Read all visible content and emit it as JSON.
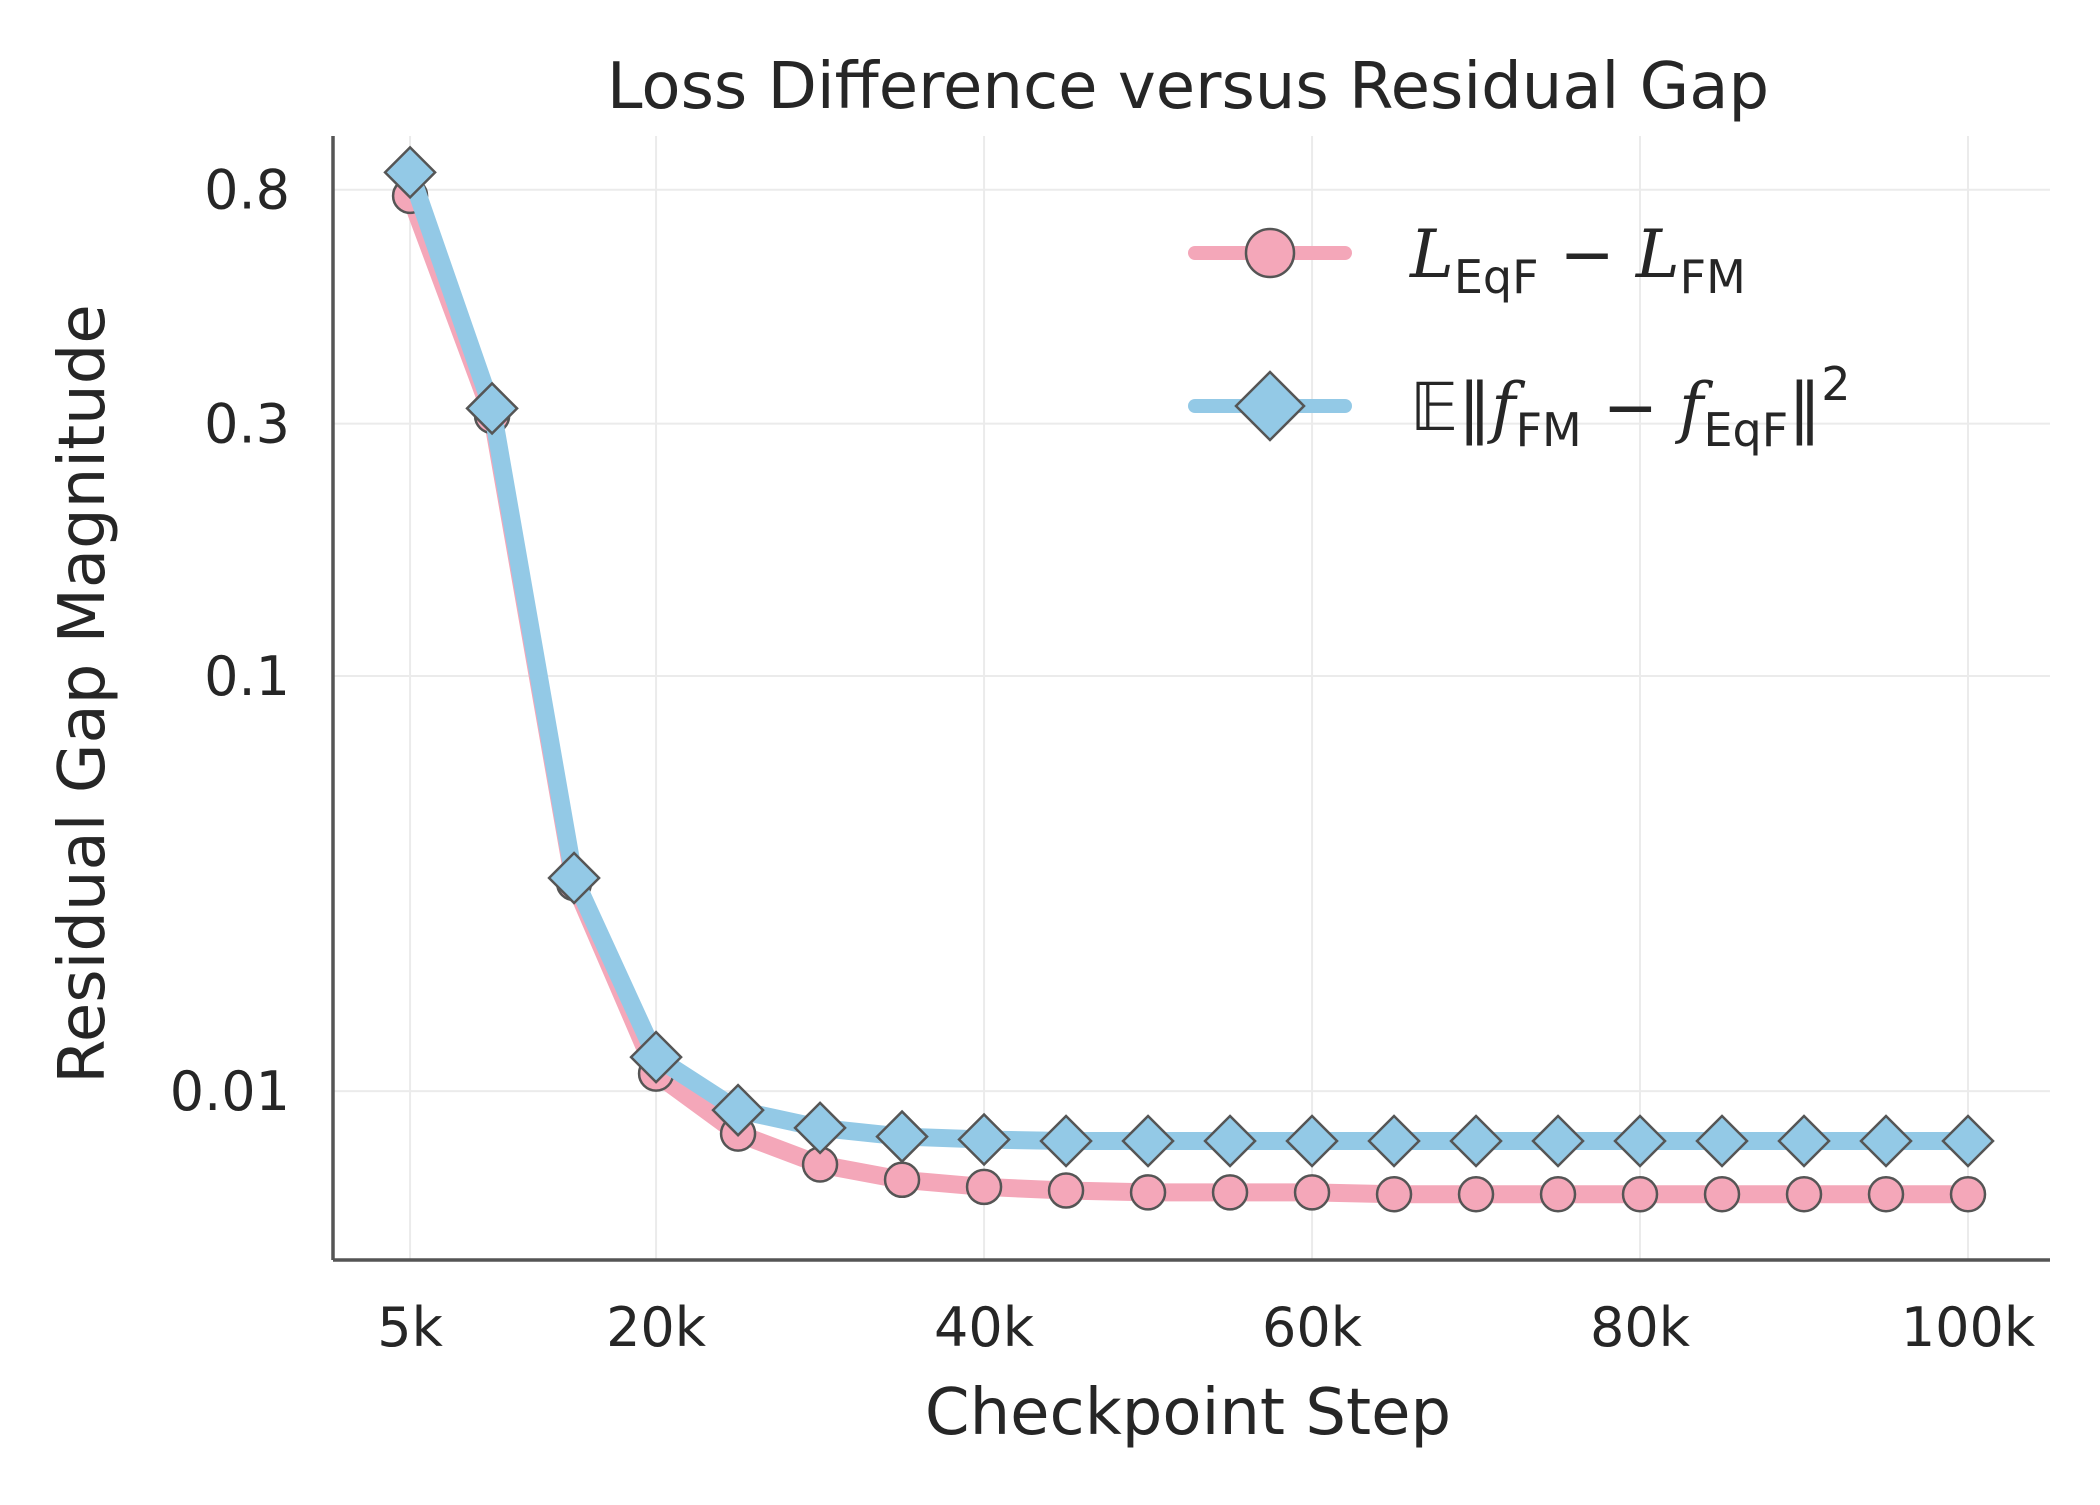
{
  "chart_data": {
    "type": "line",
    "title": "Loss Difference versus Residual Gap",
    "xlabel": "Checkpoint Step",
    "ylabel": "Residual Gap Magnitude",
    "x_ticks": [
      {
        "value": 5000,
        "label": "5k"
      },
      {
        "value": 20000,
        "label": "20k"
      },
      {
        "value": 40000,
        "label": "40k"
      },
      {
        "value": 60000,
        "label": "60k"
      },
      {
        "value": 80000,
        "label": "80k"
      },
      {
        "value": 100000,
        "label": "100k"
      }
    ],
    "y_ticks": [
      {
        "value": 0.01,
        "label": "0.01"
      },
      {
        "value": 0.1,
        "label": "0.1"
      },
      {
        "value": 0.3,
        "label": "0.3"
      },
      {
        "value": 0.8,
        "label": "0.8"
      }
    ],
    "y_scale": "symlog",
    "xlim": [
      300,
      105000
    ],
    "ylim": [
      0,
      1.0
    ],
    "grid": true,
    "legend_position": "top-right",
    "x": [
      5000,
      10000,
      15000,
      20000,
      25000,
      30000,
      35000,
      40000,
      45000,
      50000,
      55000,
      60000,
      65000,
      70000,
      75000,
      80000,
      85000,
      90000,
      95000,
      100000
    ],
    "series": [
      {
        "name_parts": {
          "main1": "L",
          "sub1": "EqF",
          "op": " − ",
          "main2": "L",
          "sub2": "FM"
        },
        "color": "#f4a7b9",
        "marker": "circle",
        "values": [
          0.78,
          0.31,
          0.037,
          0.0115,
          0.0068,
          0.0048,
          0.0039,
          0.0035,
          0.0033,
          0.0032,
          0.0032,
          0.0032,
          0.0031,
          0.0031,
          0.0031,
          0.0031,
          0.0031,
          0.0031,
          0.0031,
          0.0031
        ]
      },
      {
        "name_parts": {
          "pre": "𝔼‖",
          "main1": "f",
          "sub1": "FM",
          "op": " − ",
          "main2": "f",
          "sub2": "EqF",
          "post": "‖",
          "sup": "2"
        },
        "color": "#93c9e6",
        "marker": "diamond",
        "values": [
          0.86,
          0.32,
          0.038,
          0.013,
          0.0085,
          0.0072,
          0.0066,
          0.0064,
          0.0063,
          0.0063,
          0.0063,
          0.0063,
          0.0063,
          0.0063,
          0.0063,
          0.0063,
          0.0063,
          0.0063,
          0.0063,
          0.0063
        ]
      }
    ]
  }
}
